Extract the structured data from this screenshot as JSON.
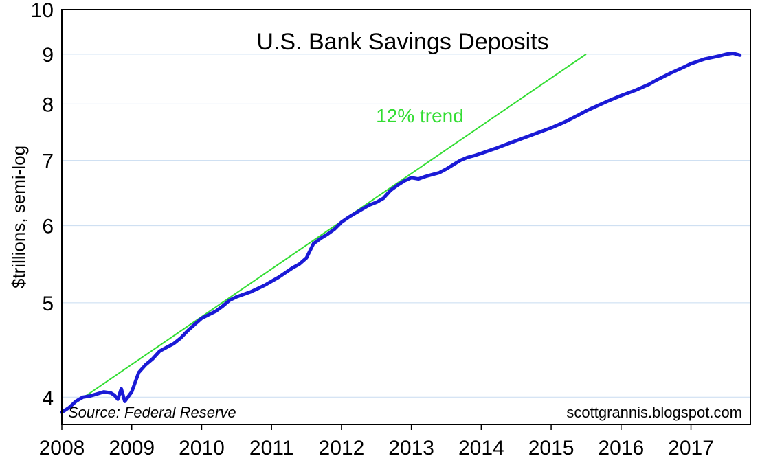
{
  "chart_data": {
    "type": "line",
    "title": "U.S. Bank Savings Deposits",
    "ylabel": "$trillions, semi-log",
    "xlabel": "",
    "y_scale": "log",
    "ylim": [
      3.75,
      10
    ],
    "xlim": [
      2008,
      2017.85
    ],
    "grid": true,
    "y_ticks": [
      4,
      5,
      6,
      7,
      8,
      9,
      10
    ],
    "x_ticks": [
      2008,
      2009,
      2010,
      2011,
      2012,
      2013,
      2014,
      2015,
      2016,
      2017
    ],
    "source_note": "Source: Federal Reserve",
    "credit_note": "scottgrannis.blogspot.com",
    "colors": {
      "series": "#1a1ad6",
      "trend": "#33dd33",
      "grid": "#c8dcf0"
    },
    "series": [
      {
        "values": [
          [
            2008.0,
            3.86
          ],
          [
            2008.1,
            3.9
          ],
          [
            2008.2,
            3.96
          ],
          [
            2008.3,
            4.0
          ],
          [
            2008.4,
            4.01
          ],
          [
            2008.5,
            4.03
          ],
          [
            2008.6,
            4.05
          ],
          [
            2008.7,
            4.04
          ],
          [
            2008.75,
            4.02
          ],
          [
            2008.8,
            3.98
          ],
          [
            2008.85,
            4.08
          ],
          [
            2008.9,
            3.96
          ],
          [
            2009.0,
            4.05
          ],
          [
            2009.1,
            4.24
          ],
          [
            2009.2,
            4.32
          ],
          [
            2009.3,
            4.38
          ],
          [
            2009.4,
            4.46
          ],
          [
            2009.5,
            4.5
          ],
          [
            2009.6,
            4.54
          ],
          [
            2009.7,
            4.6
          ],
          [
            2009.8,
            4.68
          ],
          [
            2009.9,
            4.75
          ],
          [
            2010.0,
            4.82
          ],
          [
            2010.1,
            4.86
          ],
          [
            2010.2,
            4.9
          ],
          [
            2010.3,
            4.96
          ],
          [
            2010.4,
            5.03
          ],
          [
            2010.5,
            5.07
          ],
          [
            2010.6,
            5.1
          ],
          [
            2010.7,
            5.13
          ],
          [
            2010.8,
            5.17
          ],
          [
            2010.9,
            5.21
          ],
          [
            2011.0,
            5.26
          ],
          [
            2011.1,
            5.31
          ],
          [
            2011.2,
            5.37
          ],
          [
            2011.3,
            5.43
          ],
          [
            2011.4,
            5.48
          ],
          [
            2011.5,
            5.56
          ],
          [
            2011.6,
            5.75
          ],
          [
            2011.7,
            5.82
          ],
          [
            2011.8,
            5.88
          ],
          [
            2011.9,
            5.95
          ],
          [
            2012.0,
            6.05
          ],
          [
            2012.1,
            6.12
          ],
          [
            2012.2,
            6.18
          ],
          [
            2012.3,
            6.24
          ],
          [
            2012.4,
            6.3
          ],
          [
            2012.5,
            6.34
          ],
          [
            2012.6,
            6.4
          ],
          [
            2012.7,
            6.52
          ],
          [
            2012.8,
            6.6
          ],
          [
            2012.9,
            6.67
          ],
          [
            2013.0,
            6.72
          ],
          [
            2013.1,
            6.7
          ],
          [
            2013.2,
            6.74
          ],
          [
            2013.3,
            6.77
          ],
          [
            2013.4,
            6.8
          ],
          [
            2013.5,
            6.86
          ],
          [
            2013.6,
            6.93
          ],
          [
            2013.7,
            7.0
          ],
          [
            2013.8,
            7.05
          ],
          [
            2013.9,
            7.08
          ],
          [
            2014.0,
            7.12
          ],
          [
            2014.2,
            7.2
          ],
          [
            2014.4,
            7.29
          ],
          [
            2014.6,
            7.38
          ],
          [
            2014.8,
            7.47
          ],
          [
            2015.0,
            7.56
          ],
          [
            2015.2,
            7.67
          ],
          [
            2015.4,
            7.8
          ],
          [
            2015.5,
            7.87
          ],
          [
            2015.6,
            7.93
          ],
          [
            2015.8,
            8.05
          ],
          [
            2016.0,
            8.16
          ],
          [
            2016.2,
            8.26
          ],
          [
            2016.4,
            8.38
          ],
          [
            2016.5,
            8.46
          ],
          [
            2016.7,
            8.6
          ],
          [
            2016.9,
            8.73
          ],
          [
            2017.0,
            8.8
          ],
          [
            2017.2,
            8.9
          ],
          [
            2017.3,
            8.93
          ],
          [
            2017.4,
            8.96
          ],
          [
            2017.5,
            9.0
          ],
          [
            2017.6,
            9.02
          ],
          [
            2017.7,
            8.98
          ]
        ]
      }
    ],
    "trend": {
      "label": "12% trend",
      "start": [
        2008.0,
        3.86
      ],
      "end": [
        2015.5,
        9.0
      ]
    }
  }
}
